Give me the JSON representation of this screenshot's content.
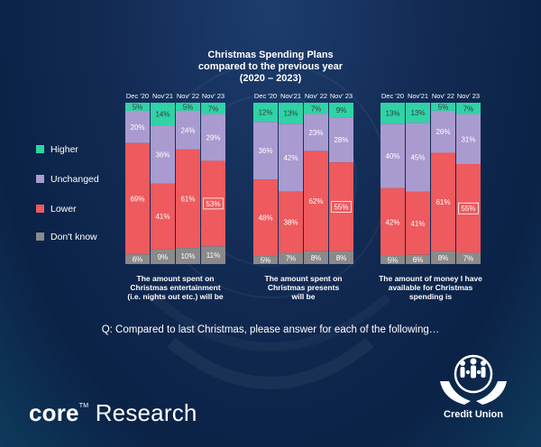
{
  "chart_data": {
    "type": "bar",
    "stacked": true,
    "title_lines": [
      "Christmas Spending  Plans",
      "compared to the previous year",
      "(2020 – 2023)"
    ],
    "periods": [
      "Dec '20",
      "Nov'21",
      "Nov' 22",
      "Nov' 23"
    ],
    "ylim": [
      0,
      100
    ],
    "legend_position": "left",
    "series": [
      {
        "name": "Higher",
        "color": "#2fd3a6"
      },
      {
        "name": "Unchanged",
        "color": "#a99bd0"
      },
      {
        "name": "Lower",
        "color": "#ee5a5e"
      },
      {
        "name": "Don't know",
        "color": "#8a8a8a"
      }
    ],
    "groups": [
      {
        "label_lines": [
          "The amount spent on",
          "Christmas entertainment",
          "(i.e. nights out etc.) will be"
        ],
        "bars": [
          {
            "values": [
              5,
              20,
              69,
              6
            ]
          },
          {
            "values": [
              14,
              36,
              41,
              9
            ]
          },
          {
            "values": [
              5,
              24,
              61,
              10
            ]
          },
          {
            "values": [
              7,
              29,
              53,
              11
            ],
            "highlight": "Lower"
          }
        ]
      },
      {
        "label_lines": [
          "The amount spent on",
          "Christmas presents",
          "will be"
        ],
        "bars": [
          {
            "values": [
              12,
              36,
              48,
              5
            ]
          },
          {
            "values": [
              13,
              42,
              38,
              7
            ]
          },
          {
            "values": [
              7,
              23,
              62,
              8
            ]
          },
          {
            "values": [
              9,
              28,
              55,
              8
            ],
            "highlight": "Lower"
          }
        ]
      },
      {
        "label_lines": [
          "The amount of money I have",
          "available for Christmas",
          "spending is"
        ],
        "bars": [
          {
            "values": [
              13,
              40,
              42,
              5
            ]
          },
          {
            "values": [
              13,
              45,
              41,
              6
            ]
          },
          {
            "values": [
              5,
              26,
              61,
              8
            ]
          },
          {
            "values": [
              7,
              31,
              55,
              7
            ],
            "highlight": "Lower"
          }
        ]
      }
    ]
  },
  "question": "Q: Compared to last Christmas, please answer for each of the following…",
  "brand": {
    "core": "core",
    "tm": "TM",
    "research": "Research"
  },
  "logo": {
    "text": "Credit Union"
  }
}
